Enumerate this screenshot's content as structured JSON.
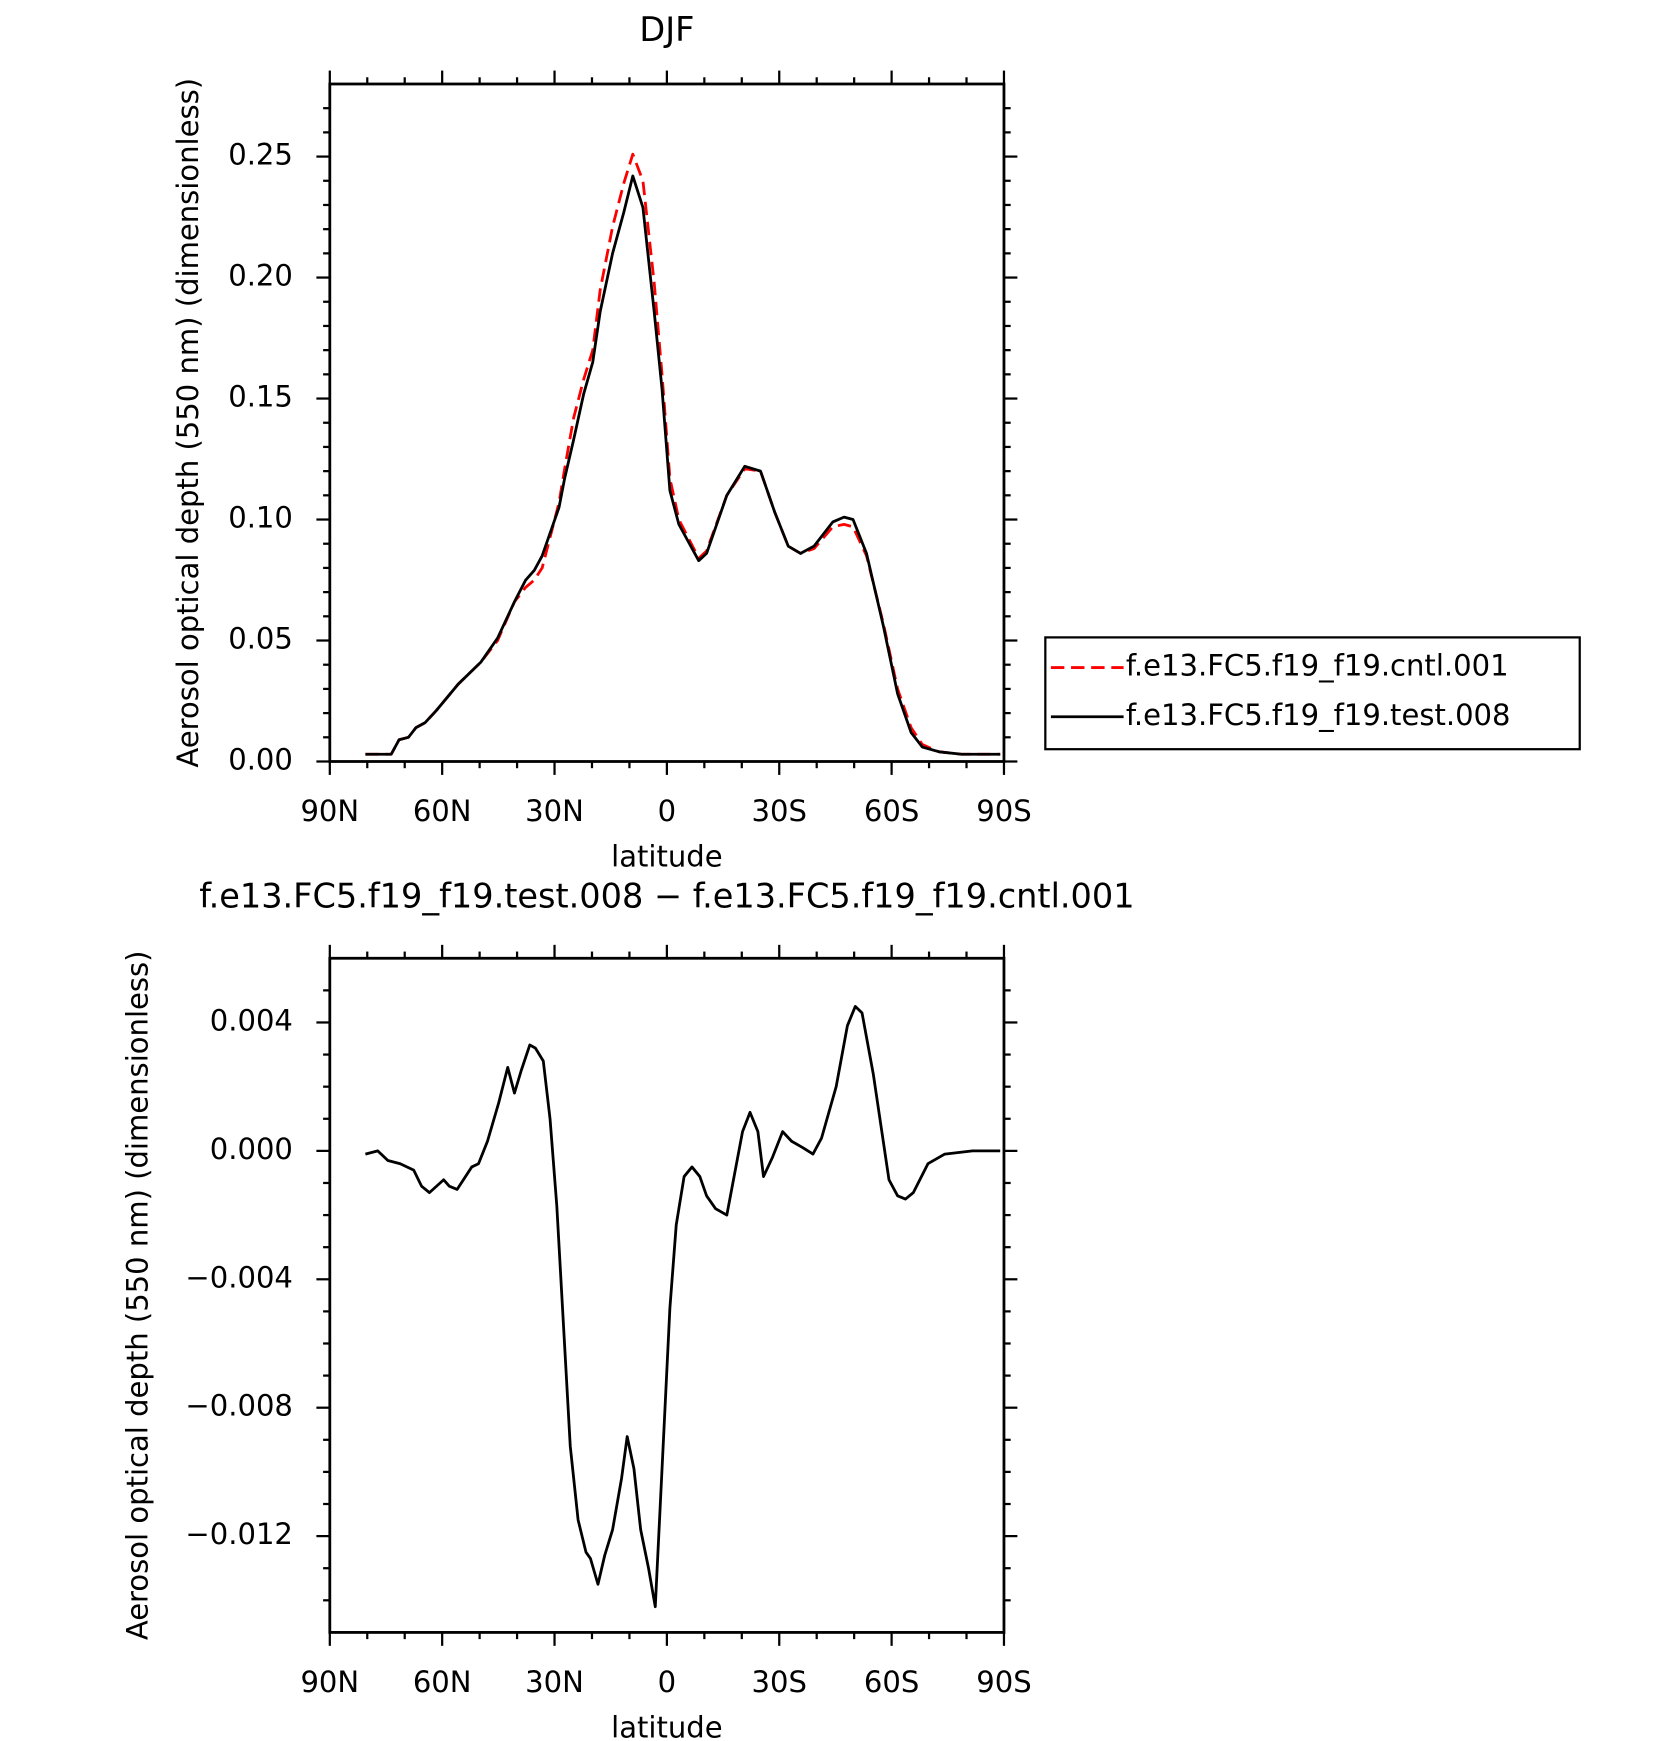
{
  "chart_data": [
    {
      "type": "line",
      "title": "DJF",
      "xlabel": "latitude",
      "ylabel": "Aerosol optical depth (550 nm) (dimensionless)",
      "xlim": [
        90,
        -90
      ],
      "xticks": [
        {
          "value": 90,
          "label": "90N"
        },
        {
          "value": 60,
          "label": "60N"
        },
        {
          "value": 30,
          "label": "30N"
        },
        0,
        {
          "value": -30,
          "label": "30S"
        },
        {
          "value": -60,
          "label": "60S"
        },
        {
          "value": -90,
          "label": "90S"
        }
      ],
      "xminor": [
        80,
        70,
        50,
        40,
        20,
        10,
        -10,
        -20,
        -40,
        -50,
        -70,
        -80
      ],
      "ylim": [
        0,
        0.28
      ],
      "yticks": [
        {
          "value": 0,
          "label": "0.00"
        },
        0.05,
        {
          "value": 0.1,
          "label": "0.10"
        },
        0.15,
        {
          "value": 0.2,
          "label": "0.20"
        },
        0.25
      ],
      "yminor": [
        0.01,
        0.02,
        0.03,
        0.04,
        0.06,
        0.07,
        0.08,
        0.09,
        0.11,
        0.12,
        0.13,
        0.14,
        0.16,
        0.17,
        0.18,
        0.19,
        0.21,
        0.22,
        0.23,
        0.24,
        0.26,
        0.27
      ],
      "legend": "right",
      "series": [
        {
          "name": "f.e13.FC5.f19_f19.cntl.001",
          "color": "#ff0000",
          "dash": true,
          "x": [
            80.5,
            73.6,
            71.5,
            69,
            67,
            64.6,
            61.6,
            55.7,
            49.7,
            45.2,
            40.7,
            37.7,
            35.4,
            33.3,
            28.8,
            27.3,
            24.9,
            22.2,
            19.8,
            17.8,
            14.5,
            11.5,
            9.1,
            6.4,
            3.4,
            1.3,
            -0.8,
            -3.2,
            -8.5,
            -10.6,
            -16,
            -20.8,
            -25,
            -28.8,
            -32.4,
            -35.7,
            -39.3,
            -44.3,
            -47.3,
            -49.7,
            -53.3,
            -57.8,
            -61.6,
            -65.2,
            -68.2,
            -72.7,
            -78.7,
            -89
          ],
          "values": [
            0.003,
            0.003,
            0.009,
            0.01,
            0.014,
            0.016,
            0.021,
            0.032,
            0.041,
            0.05,
            0.066,
            0.072,
            0.075,
            0.08,
            0.107,
            0.121,
            0.142,
            0.158,
            0.17,
            0.195,
            0.221,
            0.239,
            0.251,
            0.24,
            0.198,
            0.16,
            0.117,
            0.1,
            0.084,
            0.087,
            0.11,
            0.121,
            0.12,
            0.103,
            0.089,
            0.086,
            0.088,
            0.097,
            0.098,
            0.097,
            0.085,
            0.057,
            0.03,
            0.014,
            0.007,
            0.004,
            0.003,
            0.003
          ]
        },
        {
          "name": "f.e13.FC5.f19_f19.test.008",
          "color": "#000000",
          "dash": false,
          "x": [
            80.5,
            73.6,
            71.5,
            69,
            67,
            64.6,
            61.6,
            55.7,
            49.7,
            45.2,
            40.7,
            37.7,
            35.4,
            33.3,
            28.8,
            27.3,
            24.9,
            22.2,
            19.8,
            17.8,
            14.5,
            11.5,
            9.1,
            6.4,
            3.4,
            1.3,
            -0.8,
            -3.2,
            -8.5,
            -10.6,
            -16,
            -20.8,
            -25,
            -28.8,
            -32.4,
            -35.7,
            -39.3,
            -44.3,
            -47.3,
            -49.7,
            -53.3,
            -57.8,
            -61.6,
            -65.2,
            -68.2,
            -72.7,
            -78.7,
            -89
          ],
          "values": [
            0.003,
            0.003,
            0.009,
            0.01,
            0.014,
            0.016,
            0.021,
            0.032,
            0.041,
            0.051,
            0.066,
            0.075,
            0.079,
            0.085,
            0.105,
            0.117,
            0.133,
            0.152,
            0.165,
            0.186,
            0.21,
            0.227,
            0.242,
            0.229,
            0.186,
            0.154,
            0.112,
            0.098,
            0.083,
            0.086,
            0.11,
            0.122,
            0.12,
            0.103,
            0.089,
            0.086,
            0.089,
            0.099,
            0.101,
            0.1,
            0.086,
            0.056,
            0.028,
            0.012,
            0.006,
            0.004,
            0.003,
            0.003
          ]
        }
      ]
    },
    {
      "type": "line",
      "title": "f.e13.FC5.f19_f19.test.008 − f.e13.FC5.f19_f19.cntl.001",
      "xlabel": "latitude",
      "ylabel": "Aerosol optical depth (550 nm) (dimensionless)",
      "xlim": [
        90,
        -90
      ],
      "xticks": [
        {
          "value": 90,
          "label": "90N"
        },
        {
          "value": 60,
          "label": "60N"
        },
        {
          "value": 30,
          "label": "30N"
        },
        0,
        {
          "value": -30,
          "label": "30S"
        },
        {
          "value": -60,
          "label": "60S"
        },
        {
          "value": -90,
          "label": "90S"
        }
      ],
      "xminor": [
        80,
        70,
        50,
        40,
        20,
        10,
        -10,
        -20,
        -40,
        -50,
        -70,
        -80
      ],
      "ylim": [
        -0.015,
        0.006
      ],
      "yticks": [
        {
          "value": -0.012,
          "label": "−0.012"
        },
        {
          "value": -0.008,
          "label": "−0.008"
        },
        {
          "value": -0.004,
          "label": "−0.004"
        },
        {
          "value": 0,
          "label": "0.000"
        },
        0.004
      ],
      "yminor": [
        -0.014,
        -0.013,
        -0.011,
        -0.01,
        -0.009,
        -0.007,
        -0.006,
        -0.005,
        -0.003,
        -0.002,
        -0.001,
        0.001,
        0.002,
        0.003,
        0.005
      ],
      "color": "#000000",
      "x": [
        80.5,
        77.2,
        74.5,
        71.2,
        67.6,
        65.5,
        63.4,
        59.6,
        58.1,
        56,
        52.1,
        50.3,
        47.9,
        44.9,
        42.5,
        40.7,
        38.9,
        36.6,
        35.1,
        33,
        31.2,
        29.4,
        25.8,
        23.7,
        21.6,
        20.4,
        18.4,
        16.6,
        14.5,
        12.1,
        10.6,
        8.8,
        7,
        4.9,
        3.1,
        1,
        -0.8,
        -2.5,
        -4.6,
        -6.7,
        -8.8,
        -10.6,
        -13,
        -16,
        -18.1,
        -20.2,
        -22.2,
        -24.3,
        -25.8,
        -28.2,
        -30.9,
        -33.3,
        -36.3,
        -39,
        -41.3,
        -45.2,
        -48.2,
        -50.3,
        -52.1,
        -55.1,
        -59.3,
        -61.6,
        -63.7,
        -65.8,
        -69.7,
        -74.2,
        -81.6,
        -89
      ],
      "values": [
        -0.0001,
        0,
        -0.0003,
        -0.0004,
        -0.0006,
        -0.0011,
        -0.0013,
        -0.0009,
        -0.0011,
        -0.0012,
        -0.0005,
        -0.0004,
        0.0003,
        0.0015,
        0.0026,
        0.0018,
        0.0025,
        0.0033,
        0.0032,
        0.0028,
        0.001,
        -0.0017,
        -0.0092,
        -0.0115,
        -0.0125,
        -0.0127,
        -0.0135,
        -0.0126,
        -0.0118,
        -0.0102,
        -0.0089,
        -0.0099,
        -0.0118,
        -0.013,
        -0.0142,
        -0.0092,
        -0.0049,
        -0.0023,
        -0.0008,
        -0.0005,
        -0.0008,
        -0.0014,
        -0.0018,
        -0.002,
        -0.0007,
        0.0006,
        0.0012,
        0.0006,
        -0.0008,
        -0.0002,
        0.0006,
        0.0003,
        0.0001,
        -0.0001,
        0.0004,
        0.002,
        0.0039,
        0.0045,
        0.0043,
        0.0024,
        -0.0009,
        -0.0014,
        -0.0015,
        -0.0013,
        -0.0004,
        -0.0001,
        0,
        0
      ]
    }
  ]
}
